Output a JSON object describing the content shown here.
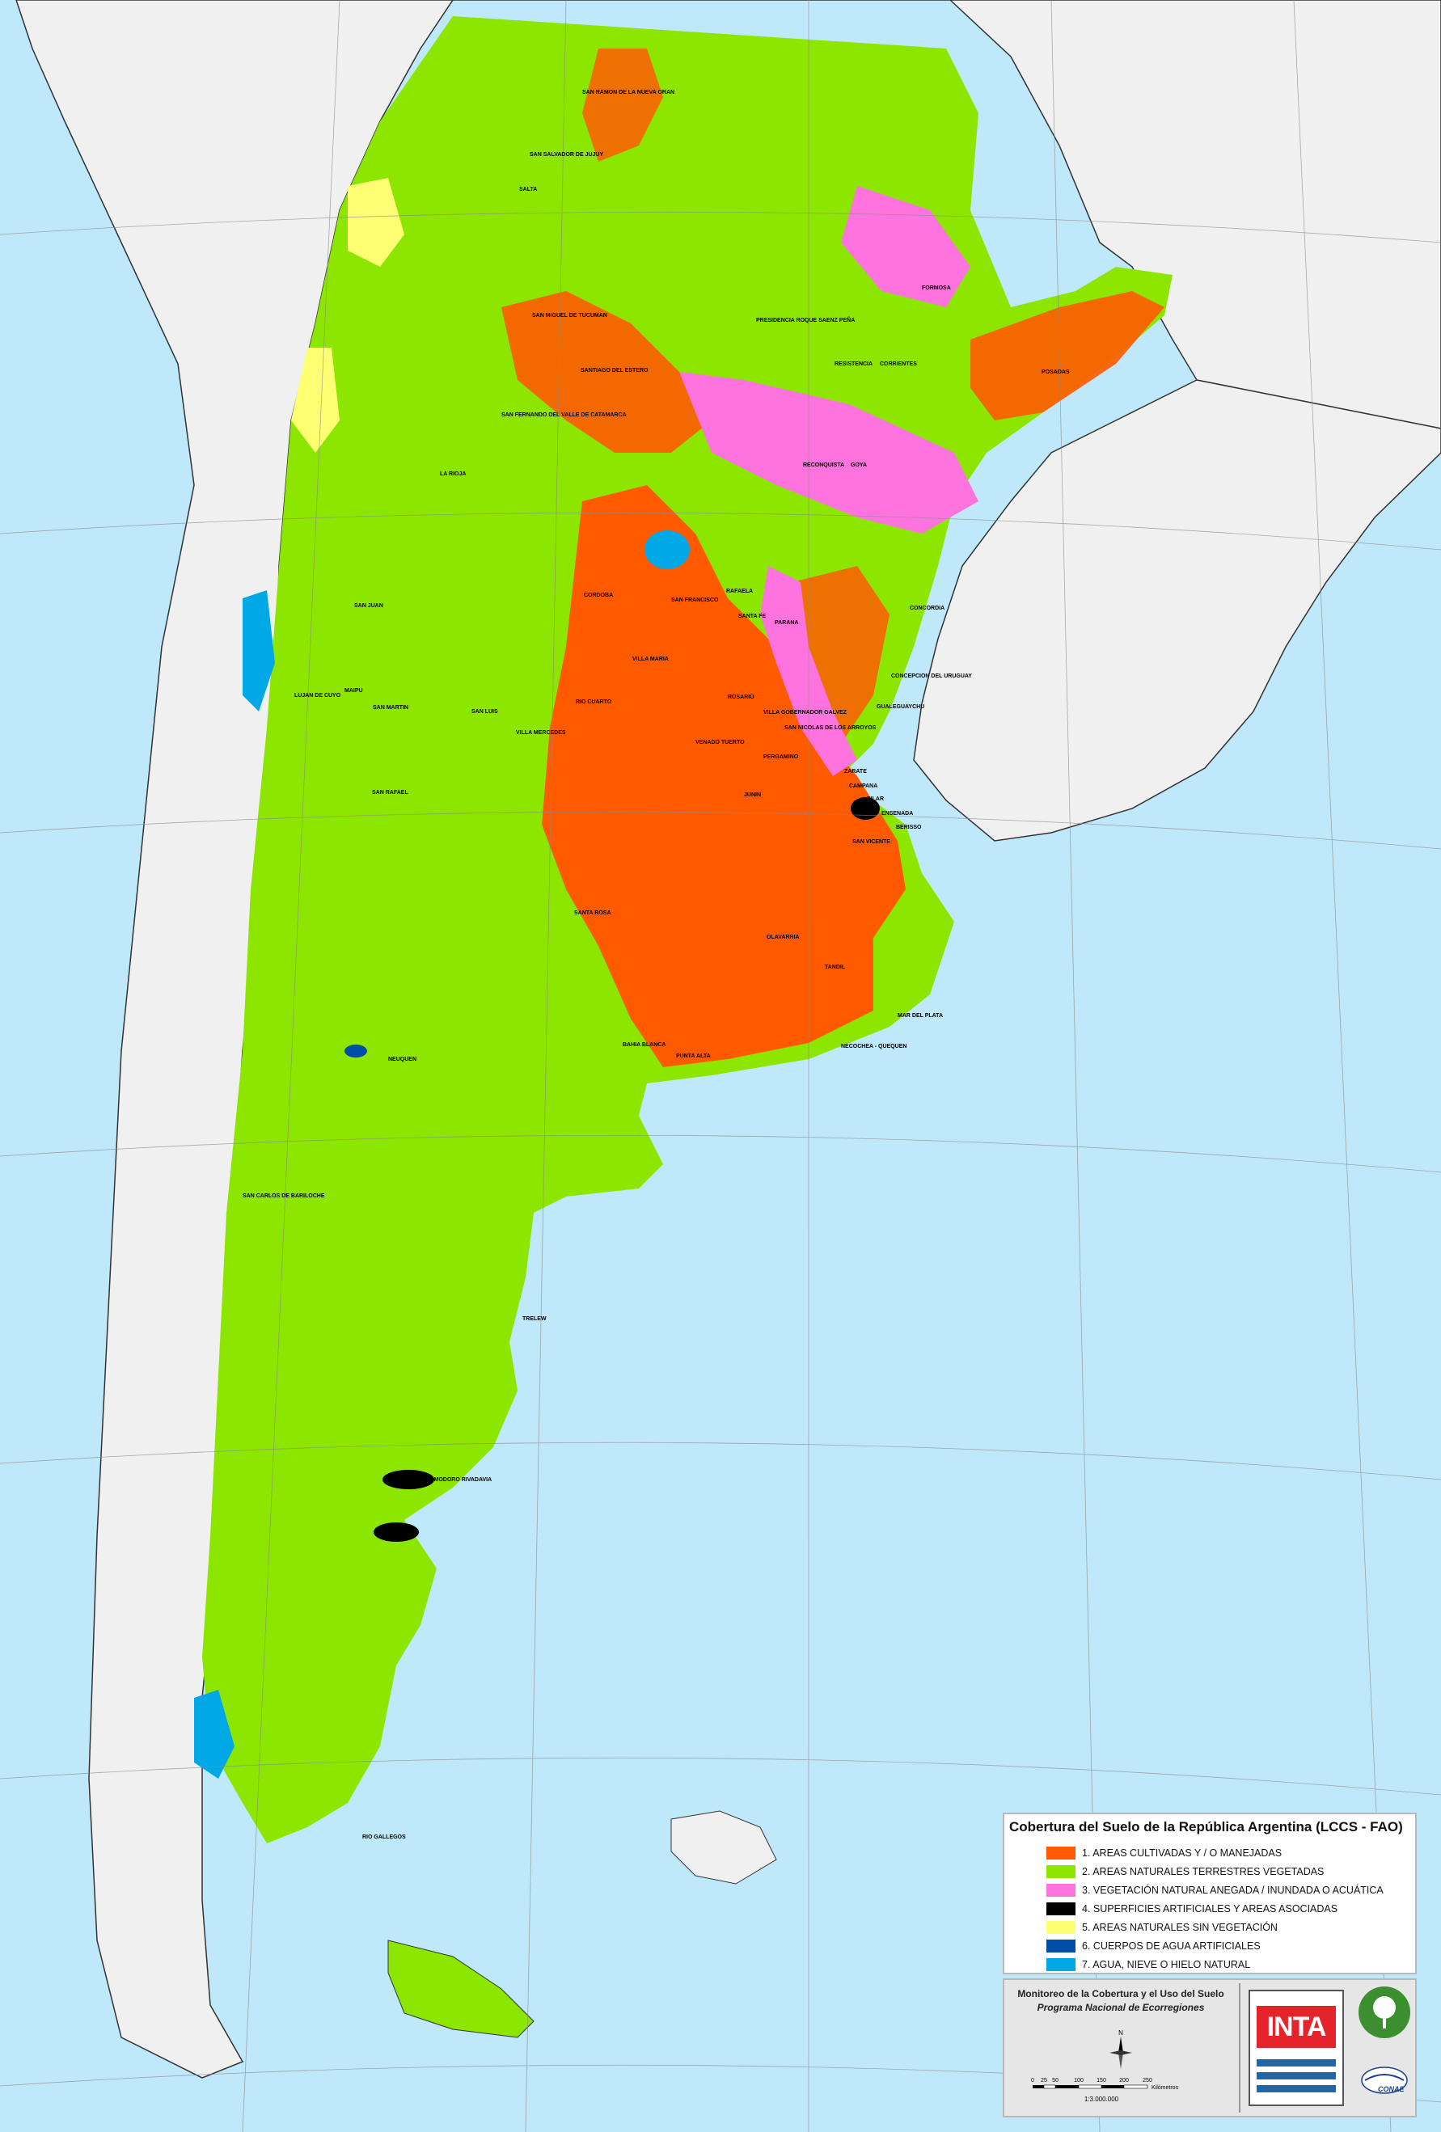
{
  "legend": {
    "title": "Cobertura del Suelo de la República Argentina  (LCCS - FAO)",
    "items": [
      {
        "label": "1. AREAS CULTIVADAS Y / O MANEJADAS",
        "color": "#ff5a00"
      },
      {
        "label": "2. AREAS NATURALES TERRESTRES VEGETADAS",
        "color": "#8ce600"
      },
      {
        "label": "3. VEGETACIÓN NATURAL ANEGADA / INUNDADA O ACUÁTICA",
        "color": "#ff73df"
      },
      {
        "label": "4. SUPERFICIES ARTIFICIALES Y AREAS ASOCIADAS",
        "color": "#000000"
      },
      {
        "label": "5. AREAS NATURALES SIN VEGETACIÓN",
        "color": "#ffff73"
      },
      {
        "label": "6. CUERPOS DE AGUA ARTIFICIALES",
        "color": "#004da8"
      },
      {
        "label": "7. AGUA, NIEVE O HIELO NATURAL",
        "color": "#00a9e6"
      }
    ]
  },
  "info": {
    "title": "Monitoreo de la Cobertura y el Uso del Suelo",
    "subtitle": "Programa Nacional de Ecorregiones",
    "north": "N",
    "scale_ticks": [
      "0",
      "25",
      "50",
      "100",
      "150",
      "200",
      "250"
    ],
    "scale_unit": "Kilómetros",
    "scale_ratio": "1:3.000.000",
    "logo_text": "INTA",
    "conae_text": "CONAE"
  },
  "colors": {
    "ocean": "#bfe8fb",
    "neighbor": "#f0f0f0",
    "cultivated": "#ff5a00",
    "vegetated": "#8ce600",
    "flooded": "#ff73df",
    "artificial": "#000000",
    "bare": "#ffff73",
    "artificial_water": "#004da8",
    "natural_water": "#00a9e6"
  },
  "cities": [
    "SAN RAMON DE LA NUEVA ORAN",
    "SAN SALVADOR DE JUJUY",
    "SALTA",
    "FORMOSA",
    "SAN MIGUEL DE TUCUMAN",
    "PRESIDENCIA ROQUE SAENZ PEÑA",
    "RESISTENCIA",
    "CORRIENTES",
    "POSADAS",
    "SANTIAGO DEL ESTERO",
    "SAN FERNANDO DEL VALLE DE CATAMARCA",
    "LA RIOJA",
    "RECONQUISTA",
    "GOYA",
    "CORDOBA",
    "SAN FRANCISCO",
    "RAFAELA",
    "SANTA FE",
    "PARANA",
    "CONCORDIA",
    "SAN JUAN",
    "VILLA MARIA",
    "CONCEPCION DEL URUGUAY",
    "LUJAN DE CUYO",
    "MAIPU",
    "SAN MARTIN",
    "SAN LUIS",
    "RIO CUARTO",
    "ROSARIO",
    "VILLA GOBERNADOR GALVEZ",
    "GUALEGUAYCHU",
    "VILLA MERCEDES",
    "SAN NICOLAS DE LOS ARROYOS",
    "VENADO TUERTO",
    "PERGAMINO",
    "ZARATE",
    "CAMPANA",
    "PILAR",
    "JUNIN",
    "SAN RAFAEL",
    "ENSENADA",
    "BERISSO",
    "SAN VICENTE",
    "SANTA ROSA",
    "OLAVARRIA",
    "TANDIL",
    "MAR DEL PLATA",
    "NECOCHEA - QUEQUEN",
    "BAHIA BLANCA",
    "PUNTA ALTA",
    "NEUQUEN",
    "SAN CARLOS DE BARILOCHE",
    "TRELEW",
    "COMODORO RIVADAVIA",
    "RIO GALLEGOS"
  ]
}
